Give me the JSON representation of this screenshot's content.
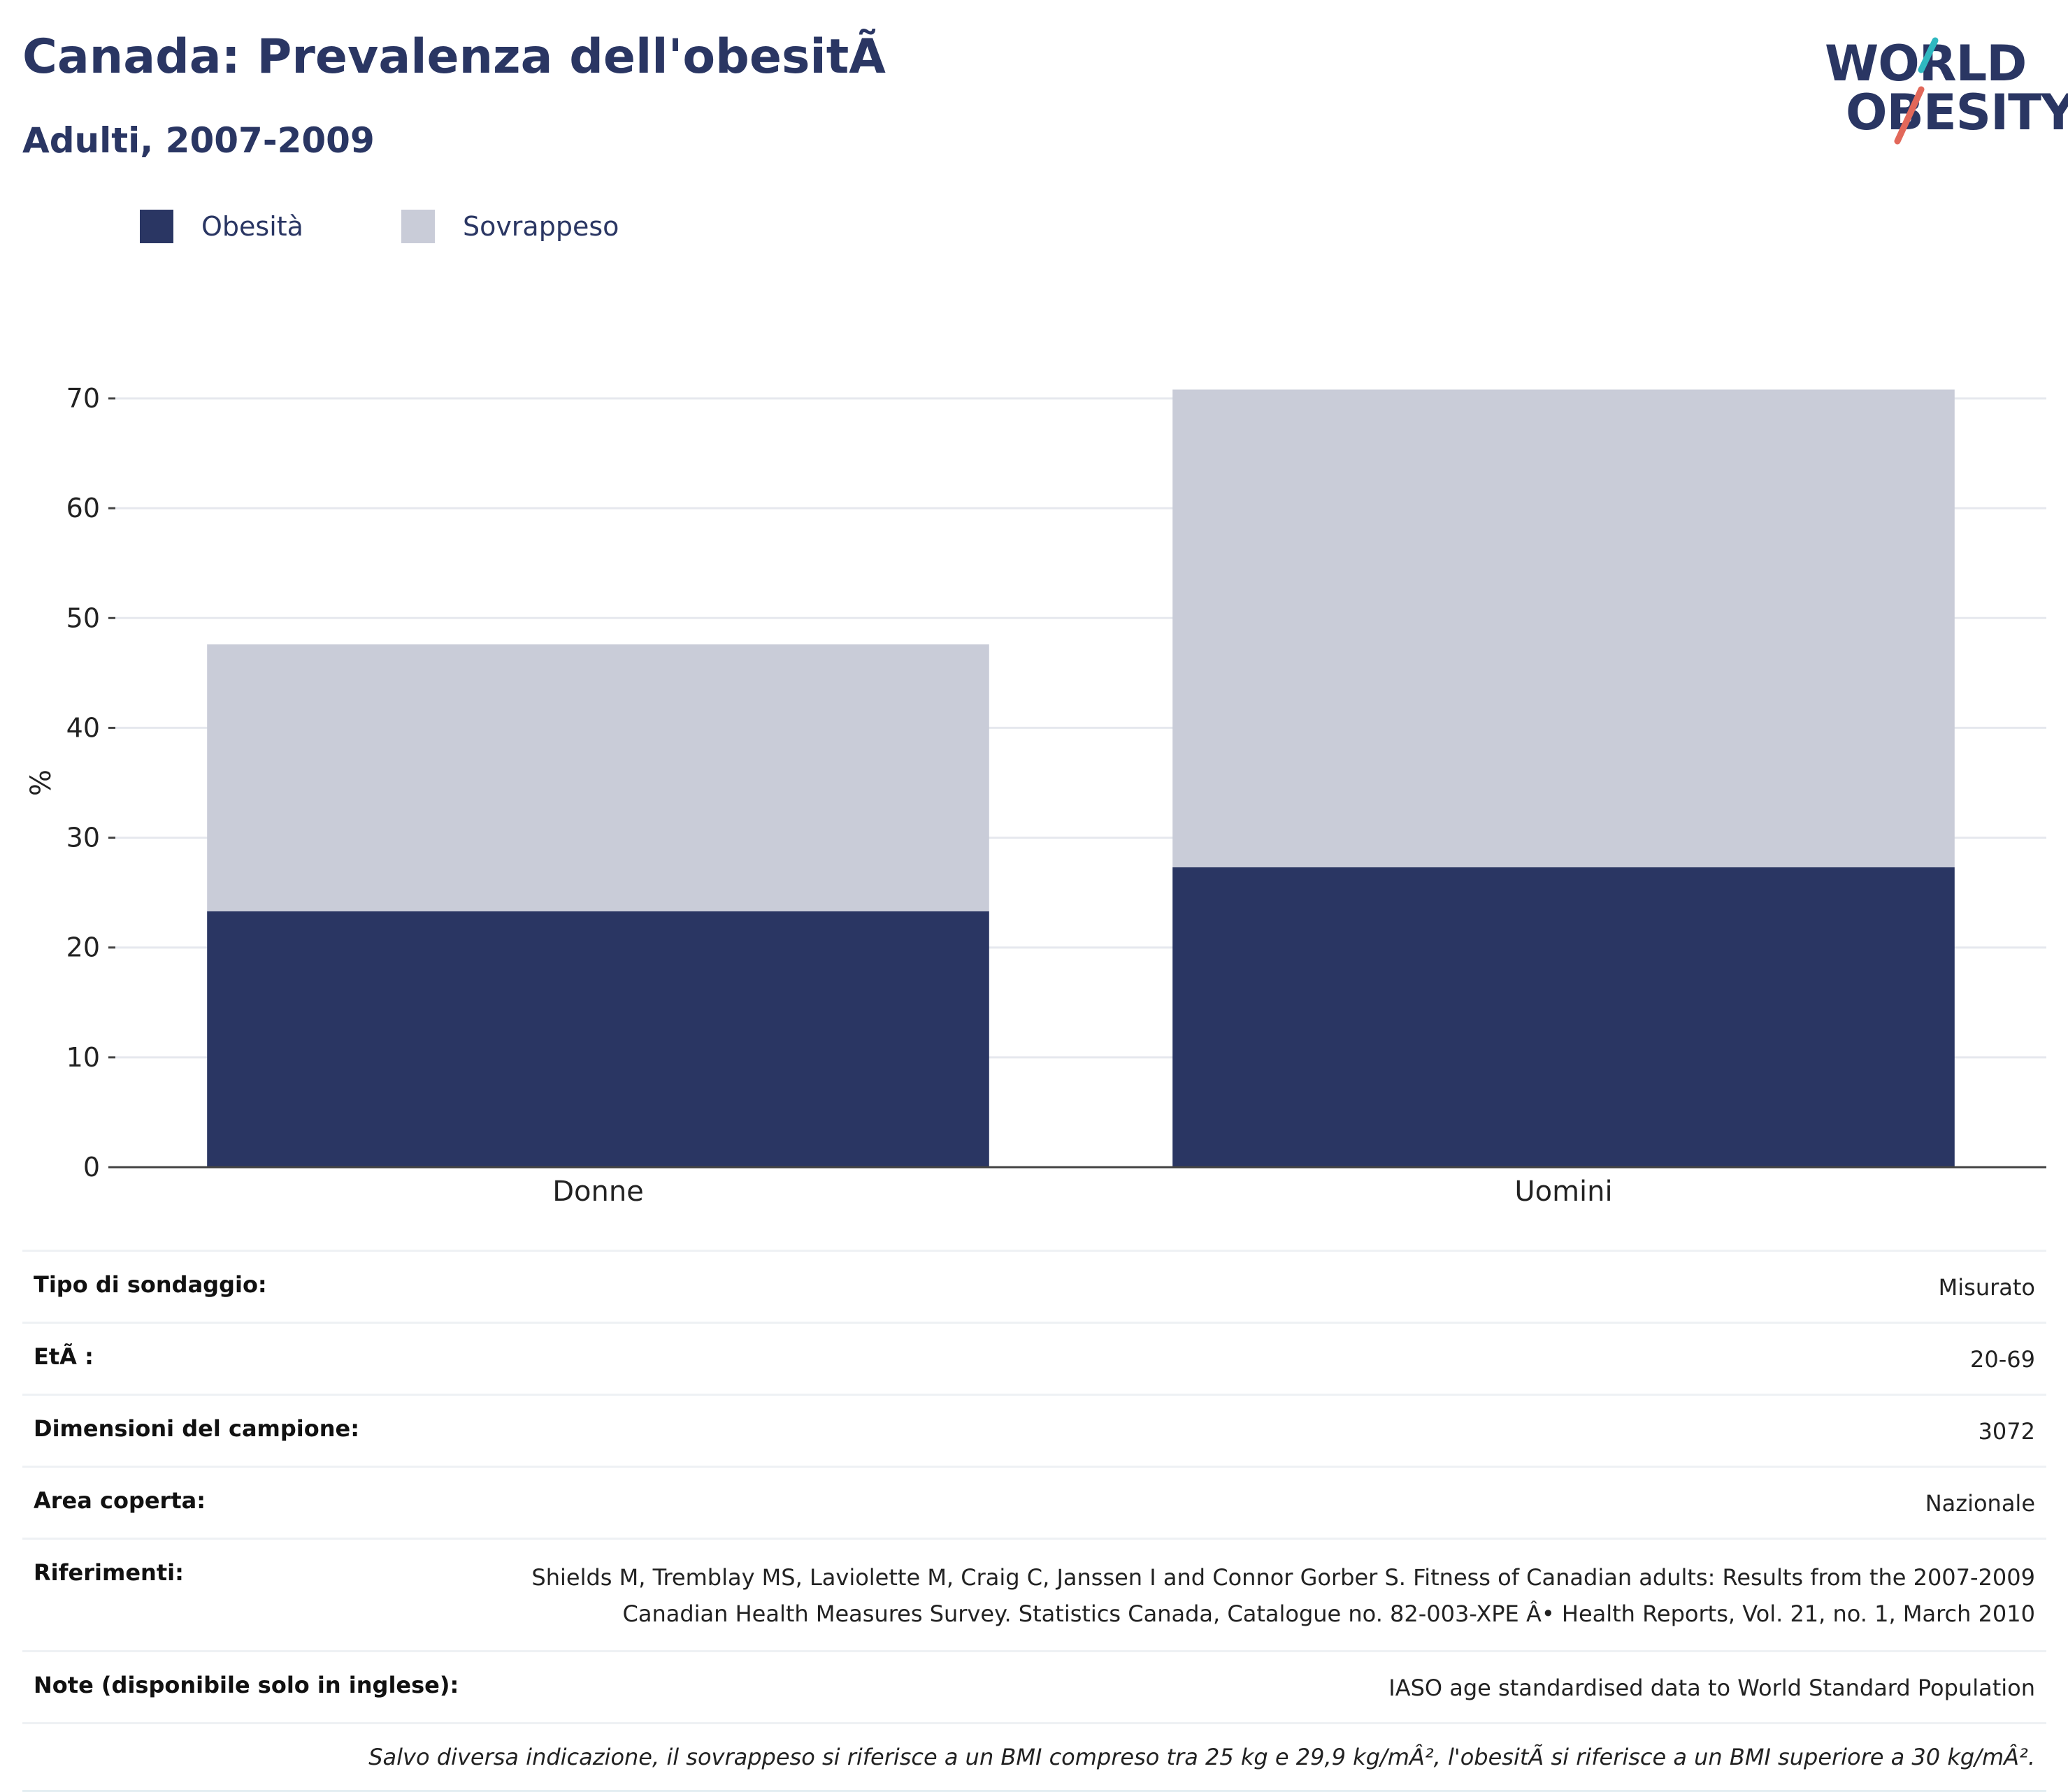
{
  "header": {
    "title": "Canada: Prevalenza dell'obesitÃ",
    "subtitle": "Adulti, 2007-2009"
  },
  "logo": {
    "line1": "WORLD",
    "line2": "OBESITY",
    "slash_colors": [
      "#2fb8c0",
      "#e2685a"
    ]
  },
  "legend": [
    {
      "label": "Obesità",
      "color": "#2a3663"
    },
    {
      "label": "Sovrappeso",
      "color": "#c9ccd8"
    }
  ],
  "chart_data": {
    "type": "bar",
    "stacked": true,
    "categories": [
      "Donne",
      "Uomini"
    ],
    "series": [
      {
        "name": "Obesità",
        "values": [
          23.3,
          27.3
        ],
        "color": "#2a3663"
      },
      {
        "name": "Sovrappeso",
        "values": [
          24.3,
          43.5
        ],
        "color": "#c9ccd8"
      }
    ],
    "ylabel": "%",
    "ylim": [
      0,
      70
    ],
    "yticks": [
      0,
      10,
      20,
      30,
      40,
      50,
      60,
      70
    ],
    "grid": true,
    "legend_position": "top-left"
  },
  "meta": [
    {
      "label": "Tipo di sondaggio:",
      "value": "Misurato"
    },
    {
      "label": "EtÃ :",
      "value": "20-69"
    },
    {
      "label": "Dimensioni del campione:",
      "value": "3072"
    },
    {
      "label": "Area coperta:",
      "value": "Nazionale"
    },
    {
      "label": "Riferimenti:",
      "value_lines": [
        "Shields M, Tremblay MS, Laviolette M, Craig C, Janssen I and Connor Gorber S. Fitness of Canadian adults: Results from the 2007-2009",
        "Canadian Health Measures Survey. Statistics Canada, Catalogue no. 82-003-XPE Â• Health Reports, Vol. 21, no. 1, March 2010"
      ]
    },
    {
      "label": "Note (disponibile solo in inglese):",
      "value": "IASO age standardised data to World Standard Population"
    }
  ],
  "footnote": "Salvo diversa indicazione, il sovrappeso si riferisce a un BMI compreso tra 25 kg e 29,9 kg/mÂ², l'obesitÃ  si riferisce a un BMI superiore a 30 kg/mÂ²."
}
